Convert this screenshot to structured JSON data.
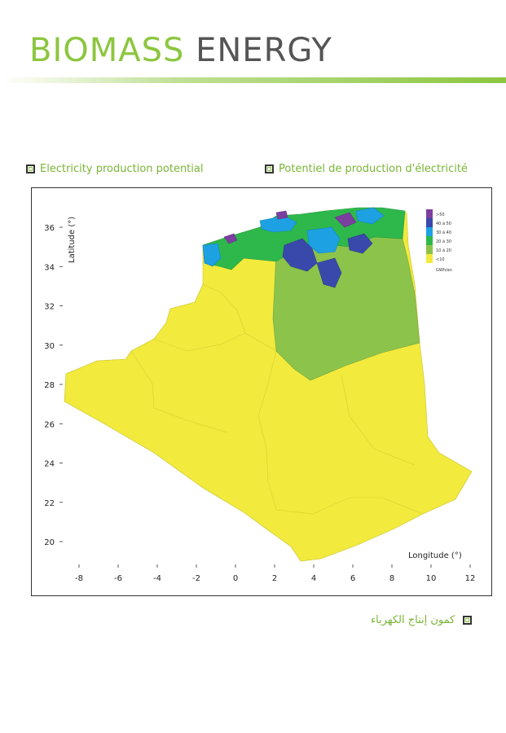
{
  "header": {
    "title_part1": "BIOMASS",
    "title_part2": "ENERGY"
  },
  "captions": {
    "english": "Electricity production potential",
    "french": "Potentiel de production d'électricité",
    "arabic": "كمون إنتاج الكهرباء"
  },
  "map": {
    "x_axis_label": "Longitude (°)",
    "y_axis_label": "Latitude (°)",
    "x_ticks": [
      "-8",
      "-6",
      "-4",
      "-2",
      "0",
      "2",
      "4",
      "6",
      "8",
      "10",
      "12"
    ],
    "y_ticks": [
      "20",
      "22",
      "24",
      "26",
      "28",
      "30",
      "32",
      "34",
      "36"
    ],
    "x_range": [
      -9,
      13
    ],
    "y_range": [
      19,
      37
    ],
    "legend": {
      "unit": "GWh/an",
      "classes": [
        {
          "label": ">50",
          "color": "#7b3fa0"
        },
        {
          "label": "40 à 50",
          "color": "#3949ab"
        },
        {
          "label": "30 à 40",
          "color": "#1da1e2"
        },
        {
          "label": "20 à 30",
          "color": "#2eb84b"
        },
        {
          "label": "10 à 20",
          "color": "#8cc34a"
        },
        {
          "label": "<10",
          "color": "#f2ea3c"
        }
      ]
    }
  }
}
